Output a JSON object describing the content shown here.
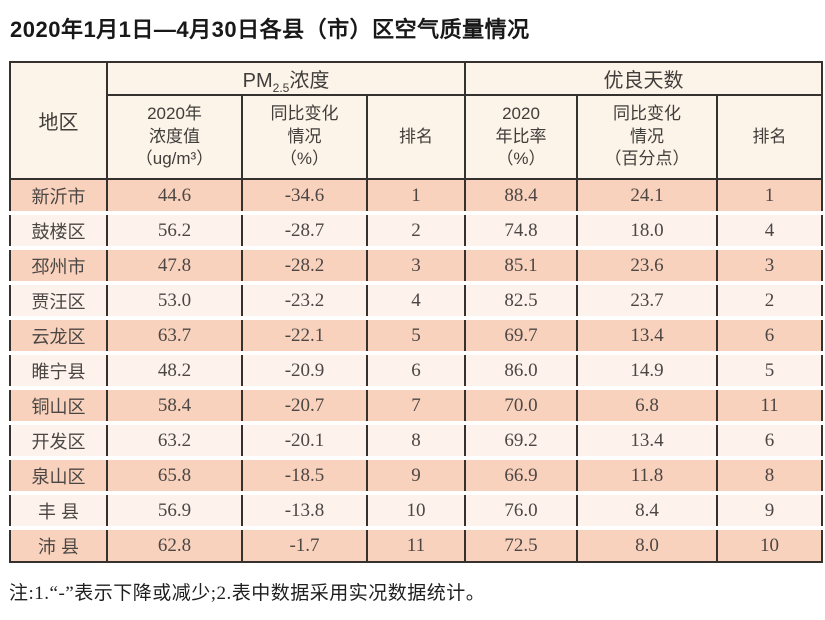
{
  "page": {
    "title": "2020年1月1日—4月30日各县（市）区空气质量情况",
    "footnote": "注:1.“-”表示下降或减少;2.表中数据采用实况数据统计。"
  },
  "chart_data": {
    "type": "table",
    "title": "2020年1月1日—4月30日各县（市）区空气质量情况",
    "corner_header": "地区",
    "groups": [
      {
        "prefix": "PM",
        "sub": "2.5",
        "suffix": "浓度",
        "columns": [
          "2020年\n浓度值\n（ug/m³）",
          "同比变化\n情况\n（%）",
          "排名"
        ]
      },
      {
        "label": "优良天数",
        "columns": [
          "2020\n年比率\n（%）",
          "同比变化\n情况\n（百分点）",
          "排名"
        ]
      }
    ],
    "rows": [
      {
        "region": "新沂市",
        "values": [
          "44.6",
          "-34.6",
          "1",
          "88.4",
          "24.1",
          "1"
        ]
      },
      {
        "region": "鼓楼区",
        "values": [
          "56.2",
          "-28.7",
          "2",
          "74.8",
          "18.0",
          "4"
        ]
      },
      {
        "region": "邳州市",
        "values": [
          "47.8",
          "-28.2",
          "3",
          "85.1",
          "23.6",
          "3"
        ]
      },
      {
        "region": "贾汪区",
        "values": [
          "53.0",
          "-23.2",
          "4",
          "82.5",
          "23.7",
          "2"
        ]
      },
      {
        "region": "云龙区",
        "values": [
          "63.7",
          "-22.1",
          "5",
          "69.7",
          "13.4",
          "6"
        ]
      },
      {
        "region": "睢宁县",
        "values": [
          "48.2",
          "-20.9",
          "6",
          "86.0",
          "14.9",
          "5"
        ]
      },
      {
        "region": "铜山区",
        "values": [
          "58.4",
          "-20.7",
          "7",
          "70.0",
          "6.8",
          "11"
        ]
      },
      {
        "region": "开发区",
        "values": [
          "63.2",
          "-20.1",
          "8",
          "69.2",
          "13.4",
          "6"
        ]
      },
      {
        "region": "泉山区",
        "values": [
          "65.8",
          "-18.5",
          "9",
          "66.9",
          "11.8",
          "8"
        ]
      },
      {
        "region": "丰 县",
        "values": [
          "56.9",
          "-13.8",
          "10",
          "76.0",
          "8.4",
          "9"
        ]
      },
      {
        "region": "沛 县",
        "values": [
          "62.8",
          "-1.7",
          "11",
          "72.5",
          "8.0",
          "10"
        ]
      }
    ],
    "colors": {
      "row_odd_bg": "#f9d2be",
      "row_even_bg": "#fdf2ec",
      "header_bg": "#fcf3e9",
      "border": "#35312e",
      "body_text": "#4c4744",
      "title_text": "#181818"
    }
  }
}
